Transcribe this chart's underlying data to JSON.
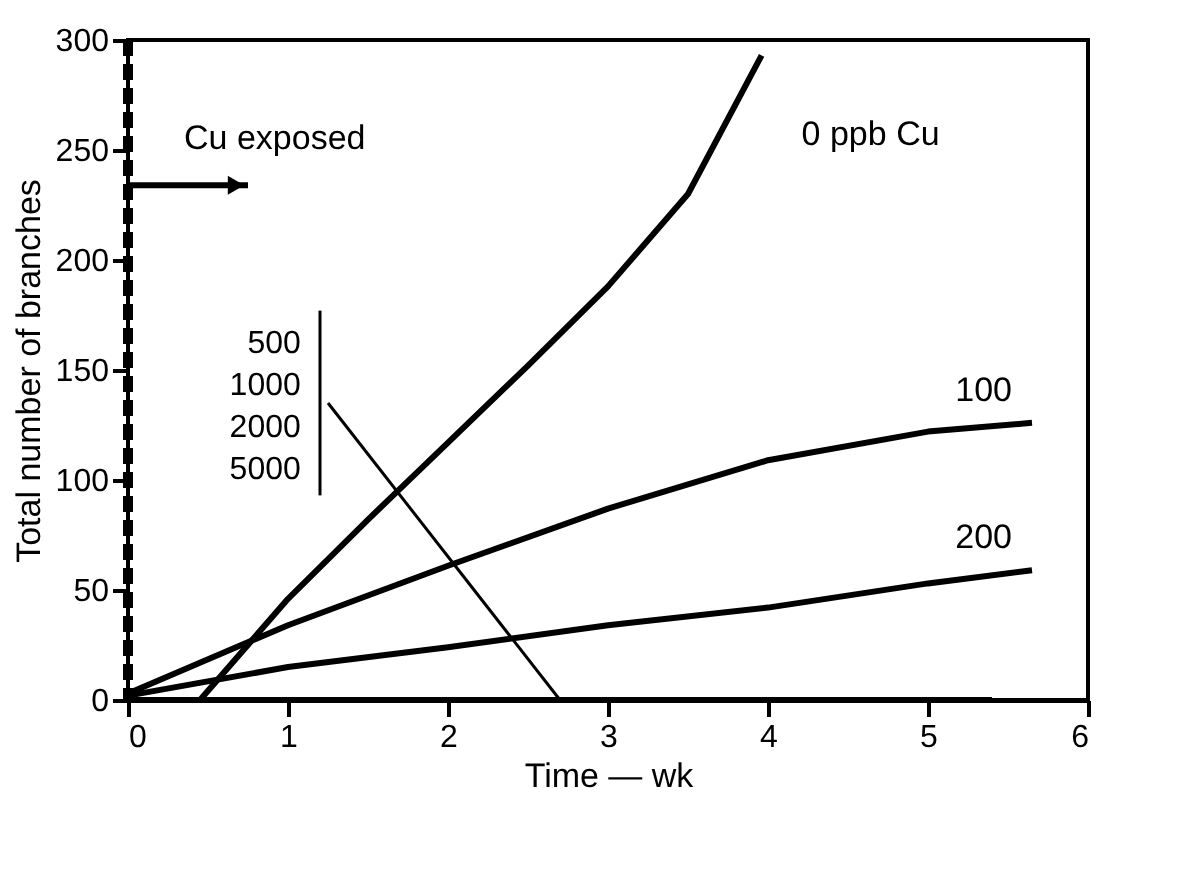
{
  "chart_data": {
    "type": "line",
    "xlabel": "Time — wk",
    "ylabel": "Total number of branches",
    "xlim": [
      0,
      6
    ],
    "xticks": [
      0,
      1,
      2,
      3,
      4,
      5,
      6
    ],
    "ylim": [
      0,
      300
    ],
    "yticks": [
      0,
      50,
      100,
      150,
      200,
      250,
      300
    ],
    "grid": false,
    "marker": "none",
    "line_style": "solid",
    "series": [
      {
        "name": "0 ppb Cu",
        "color": "#000000",
        "x": [
          0.45,
          1,
          1.5,
          2,
          2.5,
          3,
          3.5,
          3.96
        ],
        "values": [
          0,
          46,
          82,
          117,
          152,
          188,
          230,
          293
        ]
      },
      {
        "name": "100",
        "color": "#000000",
        "x": [
          0,
          1,
          2,
          3,
          4,
          5,
          5.65
        ],
        "values": [
          3,
          34,
          61,
          87,
          109,
          122,
          126
        ]
      },
      {
        "name": "200",
        "color": "#000000",
        "x": [
          0,
          1,
          2,
          3,
          4,
          5,
          5.65
        ],
        "values": [
          2,
          15,
          24,
          34,
          42,
          53,
          59
        ]
      },
      {
        "name": "500\n1000\n2000\n5000",
        "color": "#000000",
        "x": [
          0,
          1,
          2,
          3,
          4,
          5,
          5.4
        ],
        "values": [
          0,
          0,
          0,
          0,
          0,
          0,
          0
        ]
      }
    ],
    "ref_lines": [
      {
        "axis": "x",
        "value": 0,
        "label": "Cu exposed",
        "line_style": "dashed",
        "color": "#000000"
      }
    ]
  }
}
